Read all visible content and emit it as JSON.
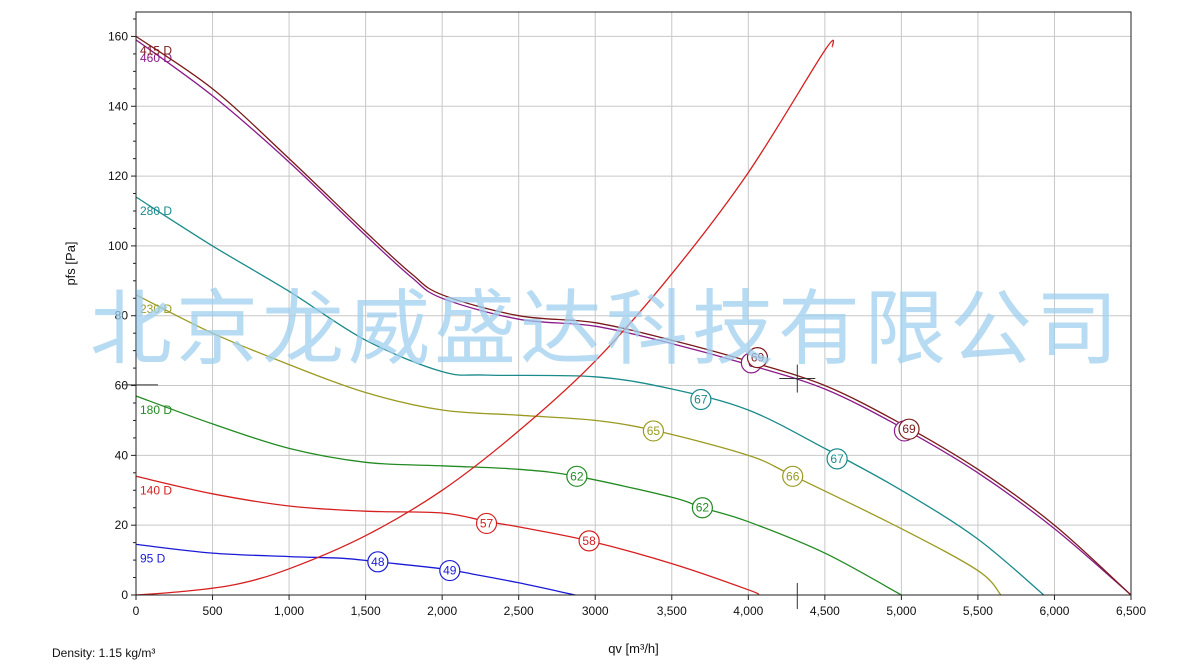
{
  "footer": {
    "density_text": "Density: 1.15 kg/m³"
  },
  "watermark_text": "北京龙威盛达科技有限公司",
  "chart_data": {
    "type": "line",
    "title": "",
    "xlabel": "qv [m³/h]",
    "ylabel": "pfs [Pa]",
    "xlim": [
      0,
      6500
    ],
    "ylim": [
      0,
      167
    ],
    "x_ticks": [
      0,
      500,
      1000,
      1500,
      2000,
      2500,
      3000,
      3500,
      4000,
      4500,
      5000,
      5500,
      6000,
      6500
    ],
    "x_tick_labels": [
      "0",
      "500",
      "1,000",
      "1,500",
      "2,000",
      "2,500",
      "3000",
      "3,500",
      "4,000",
      "4,500",
      "5,000",
      "5,500",
      "6,000",
      "6,500"
    ],
    "y_ticks": [
      0,
      20,
      40,
      60,
      80,
      100,
      120,
      140,
      160
    ],
    "y_tick_labels": [
      "0",
      "20",
      "40",
      "60",
      "80",
      "100",
      "120",
      "140",
      "160"
    ],
    "grid": true,
    "legend": "none",
    "series": [
      {
        "name": "460 D",
        "color": "#8b1a8b",
        "points": [
          [
            0,
            159
          ],
          [
            500,
            143
          ],
          [
            1000,
            124
          ],
          [
            1500,
            103
          ],
          [
            1800,
            91
          ],
          [
            2000,
            85
          ],
          [
            2500,
            79
          ],
          [
            3000,
            77
          ],
          [
            3500,
            72
          ],
          [
            4000,
            66
          ],
          [
            4500,
            59
          ],
          [
            5000,
            48
          ],
          [
            5500,
            35
          ],
          [
            6000,
            19
          ],
          [
            6500,
            0
          ]
        ],
        "markers": [
          {
            "x": 4020,
            "y": 66.5,
            "label": "6"
          },
          {
            "x": 5020,
            "y": 47,
            "label": "6"
          }
        ]
      },
      {
        "name": "415 D",
        "color": "#7a1a1a",
        "points": [
          [
            0,
            160
          ],
          [
            500,
            145
          ],
          [
            1000,
            125
          ],
          [
            1500,
            104
          ],
          [
            1800,
            92
          ],
          [
            2000,
            86
          ],
          [
            2500,
            80
          ],
          [
            3000,
            78
          ],
          [
            3500,
            73
          ],
          [
            4000,
            67
          ],
          [
            4500,
            60
          ],
          [
            5000,
            49
          ],
          [
            5500,
            36
          ],
          [
            6000,
            20
          ],
          [
            6500,
            0
          ]
        ],
        "markers": [
          {
            "x": 4060,
            "y": 68,
            "label": "69"
          },
          {
            "x": 5050,
            "y": 47.5,
            "label": "69"
          }
        ]
      },
      {
        "name": "280 D",
        "color": "#1a8a8a",
        "points": [
          [
            0,
            114
          ],
          [
            500,
            100
          ],
          [
            1000,
            87
          ],
          [
            1500,
            73
          ],
          [
            2000,
            64
          ],
          [
            2300,
            63
          ],
          [
            3000,
            62.5
          ],
          [
            3500,
            59
          ],
          [
            4000,
            53
          ],
          [
            4500,
            42
          ],
          [
            5000,
            30
          ],
          [
            5500,
            16
          ],
          [
            5930,
            0
          ]
        ],
        "markers": [
          {
            "x": 3690,
            "y": 56,
            "label": "67"
          },
          {
            "x": 4580,
            "y": 39,
            "label": "67"
          }
        ]
      },
      {
        "name": "230 D",
        "color": "#9a9a20",
        "points": [
          [
            0,
            86
          ],
          [
            500,
            75
          ],
          [
            1000,
            66
          ],
          [
            1500,
            58
          ],
          [
            2000,
            53
          ],
          [
            2500,
            51.5
          ],
          [
            3000,
            50
          ],
          [
            3400,
            47
          ],
          [
            4000,
            40
          ],
          [
            4300,
            34
          ],
          [
            5000,
            19
          ],
          [
            5500,
            7
          ],
          [
            5650,
            0
          ]
        ],
        "markers": [
          {
            "x": 3380,
            "y": 47,
            "label": "65"
          },
          {
            "x": 4290,
            "y": 34,
            "label": "66"
          }
        ]
      },
      {
        "name": "180 D",
        "color": "#228b22",
        "points": [
          [
            0,
            57
          ],
          [
            500,
            49
          ],
          [
            1000,
            42
          ],
          [
            1500,
            38
          ],
          [
            2000,
            37
          ],
          [
            2500,
            36
          ],
          [
            2880,
            34
          ],
          [
            3500,
            28
          ],
          [
            3700,
            25
          ],
          [
            4000,
            21
          ],
          [
            4500,
            12
          ],
          [
            5000,
            0
          ]
        ],
        "markers": [
          {
            "x": 2880,
            "y": 34,
            "label": "62"
          },
          {
            "x": 3700,
            "y": 25,
            "label": "62"
          }
        ]
      },
      {
        "name": "140 D",
        "color": "#d62020",
        "points": [
          [
            0,
            34
          ],
          [
            500,
            29
          ],
          [
            1000,
            25.5
          ],
          [
            1500,
            24
          ],
          [
            2000,
            23.5
          ],
          [
            2300,
            21
          ],
          [
            2500,
            19.5
          ],
          [
            2960,
            15.5
          ],
          [
            3500,
            9
          ],
          [
            4000,
            1.5
          ],
          [
            4070,
            0
          ]
        ],
        "markers": [
          {
            "x": 2290,
            "y": 20.5,
            "label": "57"
          },
          {
            "x": 2960,
            "y": 15.5,
            "label": "58"
          }
        ]
      },
      {
        "name": "95 D",
        "color": "#1a1ad6",
        "points": [
          [
            0,
            14.5
          ],
          [
            500,
            12
          ],
          [
            1000,
            11
          ],
          [
            1350,
            10.5
          ],
          [
            1580,
            9.5
          ],
          [
            2000,
            7.5
          ],
          [
            2200,
            6
          ],
          [
            2500,
            3.5
          ],
          [
            2870,
            0
          ]
        ],
        "markers": [
          {
            "x": 1580,
            "y": 9.5,
            "label": "48"
          },
          {
            "x": 2050,
            "y": 7,
            "label": "49"
          }
        ]
      },
      {
        "name": "",
        "color": "#d62020",
        "points": [
          [
            0,
            0
          ],
          [
            300,
            1
          ],
          [
            650,
            3
          ],
          [
            1000,
            7.5
          ],
          [
            1500,
            17
          ],
          [
            2000,
            30
          ],
          [
            2500,
            47
          ],
          [
            3000,
            67
          ],
          [
            3500,
            92
          ],
          [
            4000,
            121
          ],
          [
            4500,
            156
          ],
          [
            4550,
            157
          ]
        ],
        "markers": []
      }
    ]
  }
}
